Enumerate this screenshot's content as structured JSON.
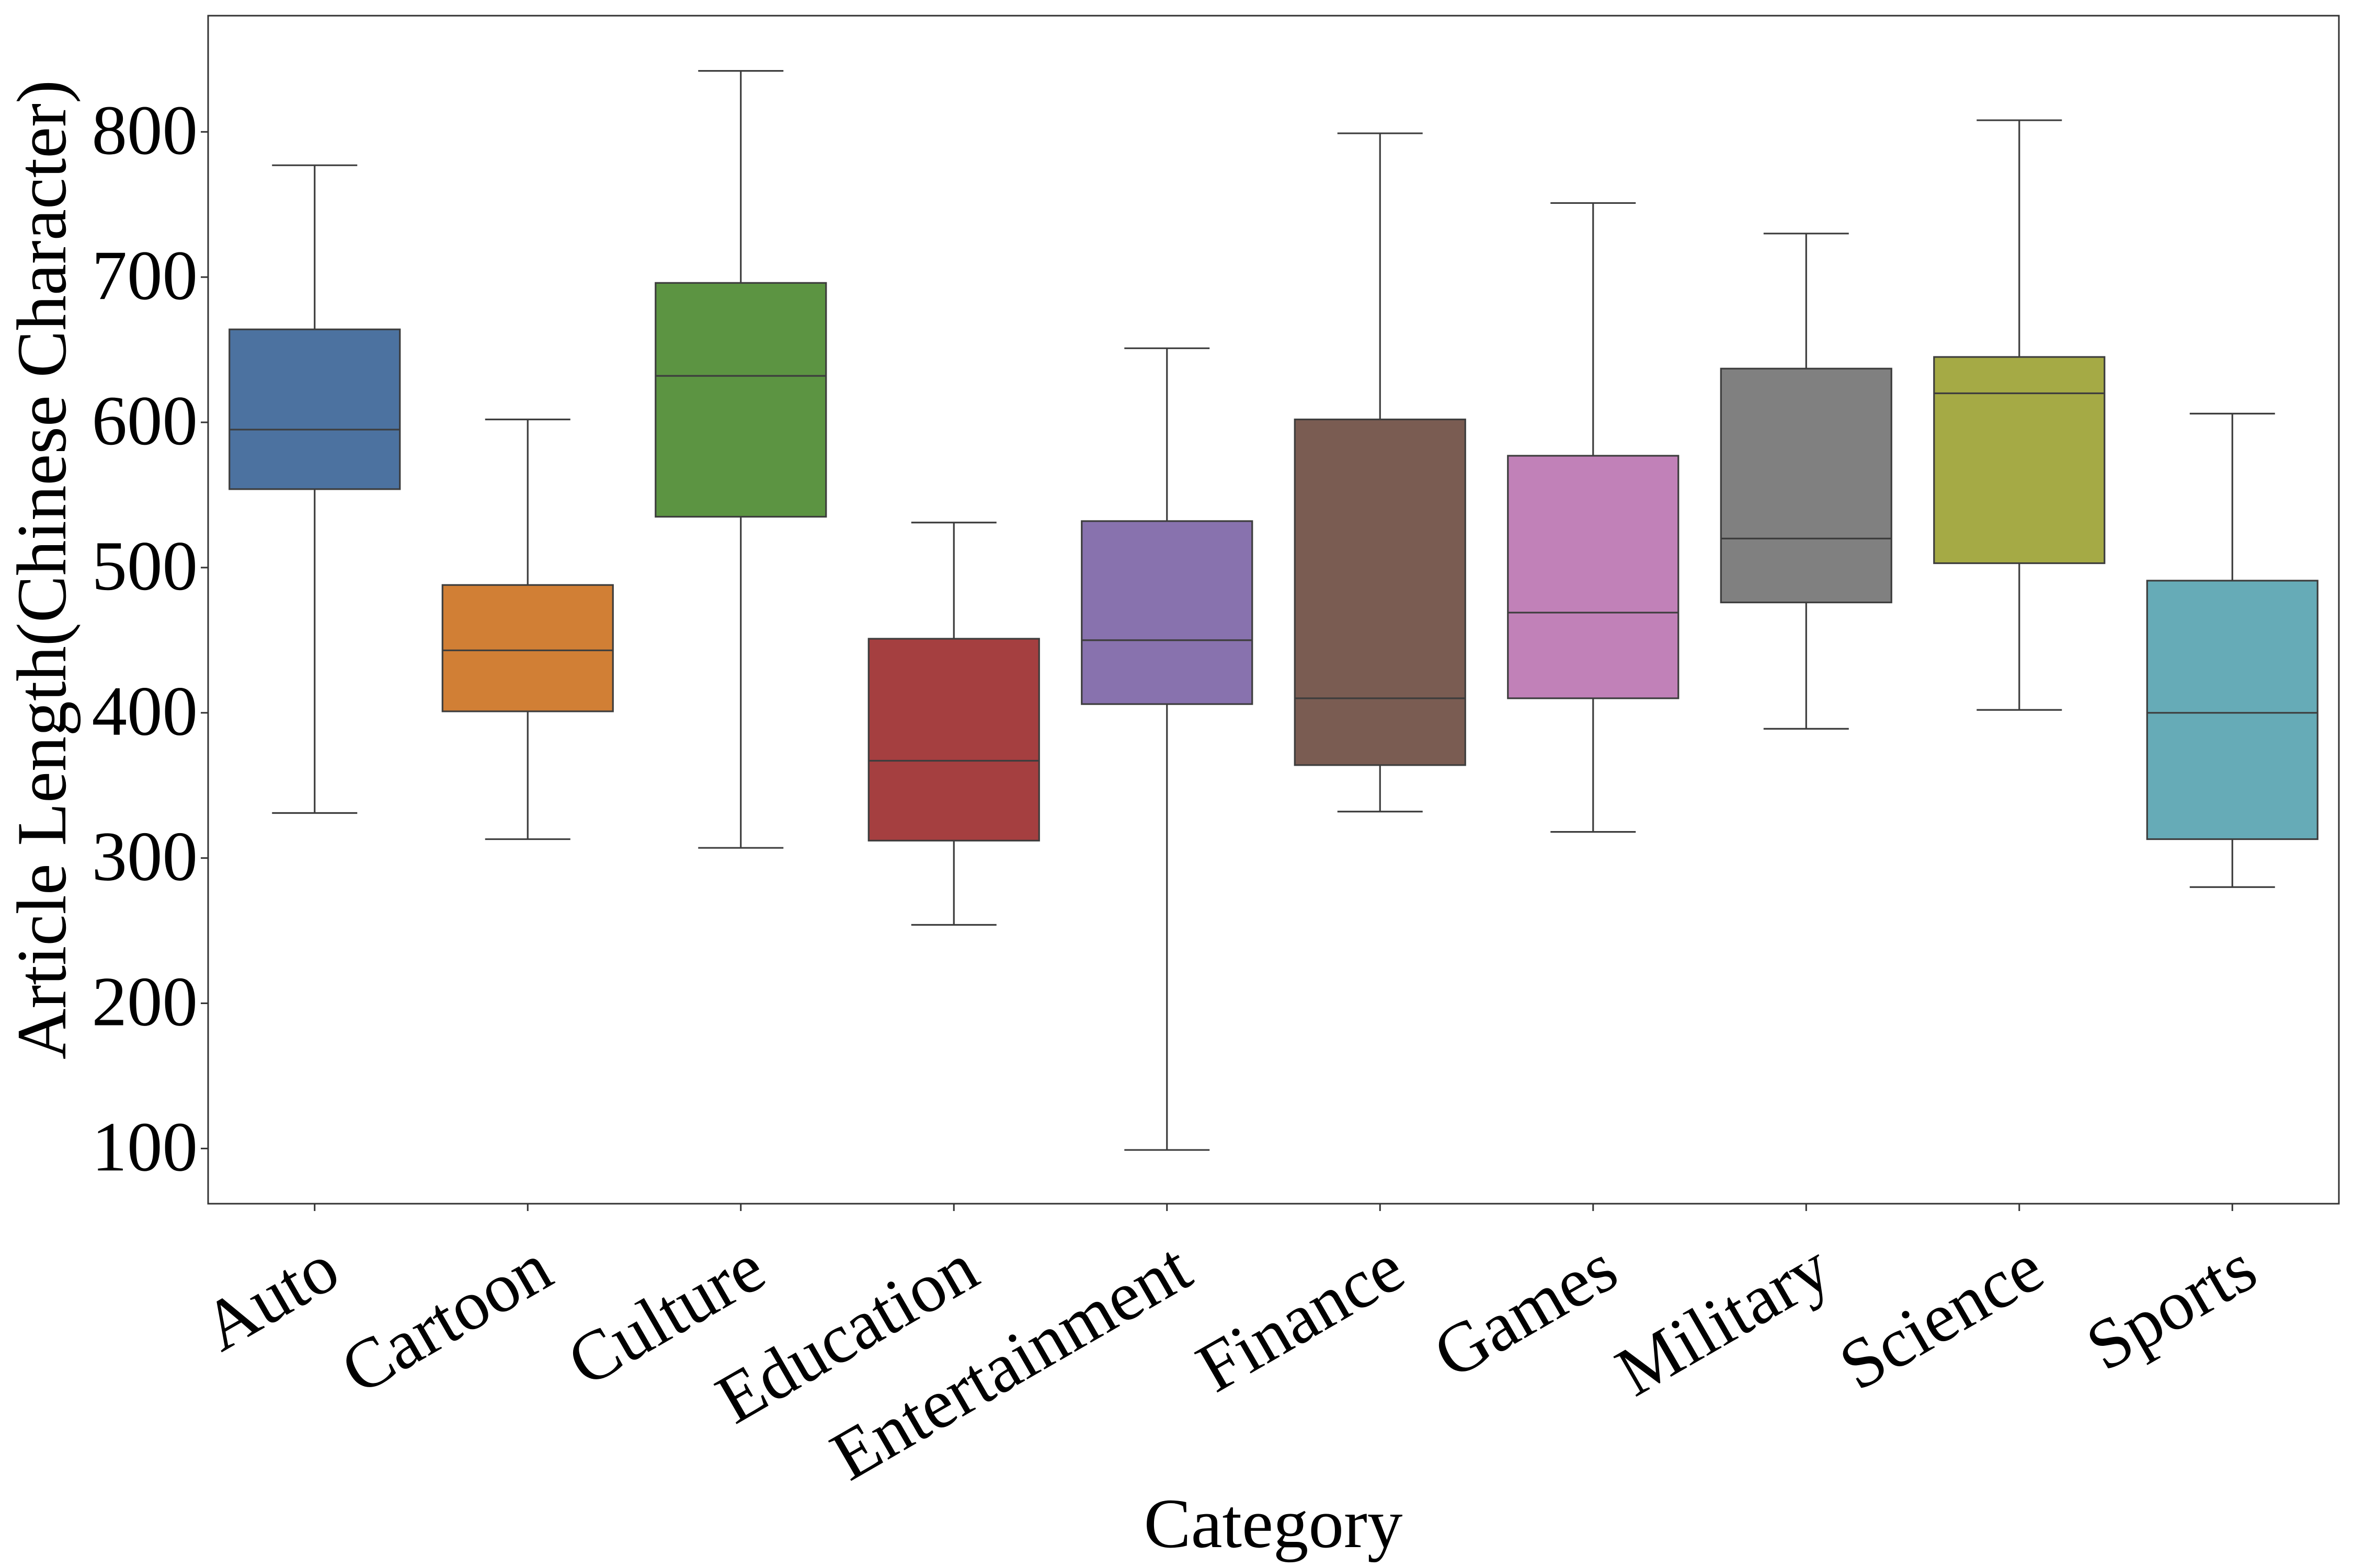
{
  "chart_data": {
    "type": "box",
    "xlabel": "Category",
    "ylabel": "Article Length(Chinese Character)",
    "ylim": [
      62,
      880
    ],
    "yticks": [
      100,
      200,
      300,
      400,
      500,
      600,
      700,
      800
    ],
    "grid": false,
    "legend": "none",
    "categories": [
      "Auto",
      "Cartoon",
      "Culture",
      "Education",
      "Entertainment",
      "Finance",
      "Games",
      "Military",
      "Science",
      "Sports"
    ],
    "colors": [
      "#4c72a0",
      "#d17f35",
      "#5c9442",
      "#a53f40",
      "#8872ae",
      "#7a5c52",
      "#c181b8",
      "#808080",
      "#a5aa45",
      "#66abb7"
    ],
    "stats": [
      {
        "min": 331,
        "q1": 554,
        "median": 595,
        "q3": 664,
        "max": 777
      },
      {
        "min": 313,
        "q1": 401,
        "median": 443,
        "q3": 488,
        "max": 602
      },
      {
        "min": 307,
        "q1": 535,
        "median": 632,
        "q3": 696,
        "max": 842
      },
      {
        "min": 254,
        "q1": 312,
        "median": 367,
        "q3": 451,
        "max": 531
      },
      {
        "min": 99,
        "q1": 406,
        "median": 450,
        "q3": 532,
        "max": 651
      },
      {
        "min": 332,
        "q1": 364,
        "median": 410,
        "q3": 602,
        "max": 799
      },
      {
        "min": 318,
        "q1": 410,
        "median": 469,
        "q3": 577,
        "max": 751
      },
      {
        "min": 389,
        "q1": 476,
        "median": 520,
        "q3": 637,
        "max": 730
      },
      {
        "min": 402,
        "q1": 503,
        "median": 620,
        "q3": 645,
        "max": 808
      },
      {
        "min": 280,
        "q1": 313,
        "median": 400,
        "q3": 491,
        "max": 606
      }
    ]
  }
}
